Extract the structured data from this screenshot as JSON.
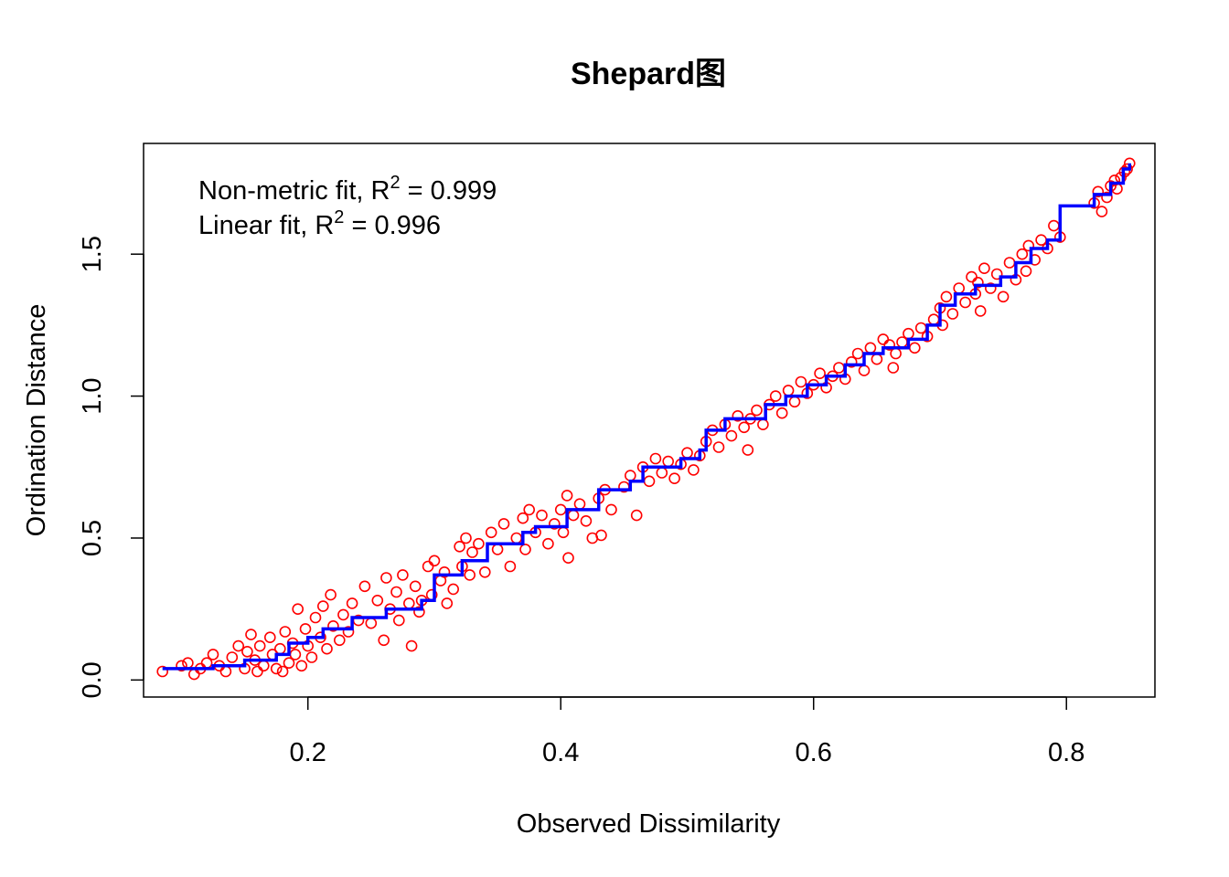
{
  "chart_data": {
    "type": "scatter",
    "title": "Shepard图",
    "xlabel": "Observed Dissimilarity",
    "ylabel": "Ordination Distance",
    "xlim": [
      0.07,
      0.87
    ],
    "ylim": [
      -0.06,
      1.89
    ],
    "xticks": [
      0.2,
      0.4,
      0.6,
      0.8
    ],
    "xtick_labels": [
      "0.2",
      "0.4",
      "0.6",
      "0.8"
    ],
    "yticks": [
      0.0,
      0.5,
      1.0,
      1.5
    ],
    "ytick_labels": [
      "0.0",
      "0.5",
      "1.0",
      "1.5"
    ],
    "grid": false,
    "legend": {
      "placement": "top-left",
      "lines": [
        {
          "prefix": "Non-metric fit, R",
          "sup": "2",
          "suffix": " = 0.999"
        },
        {
          "prefix": "Linear fit, R",
          "sup": "2",
          "suffix": " = 0.996"
        }
      ]
    },
    "series": [
      {
        "kind": "scatter",
        "marker": "open-circle",
        "color": "#FF0000",
        "points": [
          [
            0.085,
            0.03
          ],
          [
            0.1,
            0.05
          ],
          [
            0.105,
            0.06
          ],
          [
            0.11,
            0.02
          ],
          [
            0.115,
            0.04
          ],
          [
            0.12,
            0.06
          ],
          [
            0.125,
            0.09
          ],
          [
            0.13,
            0.05
          ],
          [
            0.135,
            0.03
          ],
          [
            0.14,
            0.08
          ],
          [
            0.145,
            0.12
          ],
          [
            0.15,
            0.04
          ],
          [
            0.152,
            0.1
          ],
          [
            0.155,
            0.16
          ],
          [
            0.158,
            0.07
          ],
          [
            0.16,
            0.03
          ],
          [
            0.162,
            0.12
          ],
          [
            0.165,
            0.05
          ],
          [
            0.17,
            0.15
          ],
          [
            0.172,
            0.09
          ],
          [
            0.175,
            0.04
          ],
          [
            0.178,
            0.11
          ],
          [
            0.18,
            0.03
          ],
          [
            0.182,
            0.17
          ],
          [
            0.185,
            0.06
          ],
          [
            0.188,
            0.13
          ],
          [
            0.19,
            0.09
          ],
          [
            0.192,
            0.25
          ],
          [
            0.195,
            0.05
          ],
          [
            0.198,
            0.18
          ],
          [
            0.2,
            0.12
          ],
          [
            0.203,
            0.08
          ],
          [
            0.206,
            0.22
          ],
          [
            0.21,
            0.15
          ],
          [
            0.212,
            0.26
          ],
          [
            0.215,
            0.11
          ],
          [
            0.218,
            0.3
          ],
          [
            0.22,
            0.19
          ],
          [
            0.225,
            0.14
          ],
          [
            0.228,
            0.23
          ],
          [
            0.232,
            0.17
          ],
          [
            0.235,
            0.27
          ],
          [
            0.24,
            0.21
          ],
          [
            0.245,
            0.33
          ],
          [
            0.25,
            0.2
          ],
          [
            0.255,
            0.28
          ],
          [
            0.26,
            0.14
          ],
          [
            0.262,
            0.36
          ],
          [
            0.265,
            0.25
          ],
          [
            0.27,
            0.31
          ],
          [
            0.272,
            0.21
          ],
          [
            0.275,
            0.37
          ],
          [
            0.28,
            0.27
          ],
          [
            0.282,
            0.12
          ],
          [
            0.285,
            0.33
          ],
          [
            0.288,
            0.24
          ],
          [
            0.29,
            0.28
          ],
          [
            0.295,
            0.4
          ],
          [
            0.298,
            0.3
          ],
          [
            0.3,
            0.42
          ],
          [
            0.305,
            0.35
          ],
          [
            0.308,
            0.38
          ],
          [
            0.31,
            0.27
          ],
          [
            0.315,
            0.32
          ],
          [
            0.32,
            0.47
          ],
          [
            0.322,
            0.4
          ],
          [
            0.325,
            0.5
          ],
          [
            0.328,
            0.37
          ],
          [
            0.33,
            0.45
          ],
          [
            0.335,
            0.48
          ],
          [
            0.34,
            0.38
          ],
          [
            0.345,
            0.52
          ],
          [
            0.35,
            0.46
          ],
          [
            0.355,
            0.55
          ],
          [
            0.36,
            0.4
          ],
          [
            0.365,
            0.5
          ],
          [
            0.37,
            0.57
          ],
          [
            0.372,
            0.46
          ],
          [
            0.375,
            0.6
          ],
          [
            0.38,
            0.52
          ],
          [
            0.385,
            0.58
          ],
          [
            0.39,
            0.48
          ],
          [
            0.395,
            0.55
          ],
          [
            0.4,
            0.6
          ],
          [
            0.402,
            0.52
          ],
          [
            0.405,
            0.65
          ],
          [
            0.406,
            0.43
          ],
          [
            0.41,
            0.58
          ],
          [
            0.415,
            0.62
          ],
          [
            0.42,
            0.56
          ],
          [
            0.425,
            0.5
          ],
          [
            0.43,
            0.64
          ],
          [
            0.432,
            0.51
          ],
          [
            0.435,
            0.67
          ],
          [
            0.44,
            0.6
          ],
          [
            0.45,
            0.68
          ],
          [
            0.455,
            0.72
          ],
          [
            0.46,
            0.58
          ],
          [
            0.465,
            0.75
          ],
          [
            0.47,
            0.7
          ],
          [
            0.475,
            0.78
          ],
          [
            0.48,
            0.73
          ],
          [
            0.485,
            0.77
          ],
          [
            0.49,
            0.71
          ],
          [
            0.495,
            0.76
          ],
          [
            0.5,
            0.8
          ],
          [
            0.505,
            0.74
          ],
          [
            0.51,
            0.79
          ],
          [
            0.515,
            0.84
          ],
          [
            0.52,
            0.88
          ],
          [
            0.525,
            0.82
          ],
          [
            0.53,
            0.9
          ],
          [
            0.535,
            0.86
          ],
          [
            0.54,
            0.93
          ],
          [
            0.545,
            0.89
          ],
          [
            0.548,
            0.81
          ],
          [
            0.55,
            0.92
          ],
          [
            0.555,
            0.95
          ],
          [
            0.56,
            0.9
          ],
          [
            0.565,
            0.97
          ],
          [
            0.57,
            1.0
          ],
          [
            0.575,
            0.94
          ],
          [
            0.58,
            1.02
          ],
          [
            0.585,
            0.98
          ],
          [
            0.59,
            1.05
          ],
          [
            0.595,
            1.01
          ],
          [
            0.6,
            1.04
          ],
          [
            0.605,
            1.08
          ],
          [
            0.61,
            1.03
          ],
          [
            0.615,
            1.07
          ],
          [
            0.62,
            1.1
          ],
          [
            0.625,
            1.06
          ],
          [
            0.63,
            1.12
          ],
          [
            0.635,
            1.15
          ],
          [
            0.64,
            1.09
          ],
          [
            0.645,
            1.17
          ],
          [
            0.65,
            1.13
          ],
          [
            0.655,
            1.2
          ],
          [
            0.66,
            1.18
          ],
          [
            0.663,
            1.1
          ],
          [
            0.665,
            1.15
          ],
          [
            0.67,
            1.19
          ],
          [
            0.675,
            1.22
          ],
          [
            0.68,
            1.17
          ],
          [
            0.685,
            1.24
          ],
          [
            0.69,
            1.21
          ],
          [
            0.695,
            1.27
          ],
          [
            0.7,
            1.31
          ],
          [
            0.702,
            1.25
          ],
          [
            0.705,
            1.35
          ],
          [
            0.71,
            1.29
          ],
          [
            0.715,
            1.38
          ],
          [
            0.72,
            1.33
          ],
          [
            0.725,
            1.42
          ],
          [
            0.728,
            1.36
          ],
          [
            0.73,
            1.4
          ],
          [
            0.732,
            1.3
          ],
          [
            0.735,
            1.45
          ],
          [
            0.74,
            1.38
          ],
          [
            0.745,
            1.43
          ],
          [
            0.75,
            1.35
          ],
          [
            0.755,
            1.47
          ],
          [
            0.76,
            1.41
          ],
          [
            0.765,
            1.5
          ],
          [
            0.768,
            1.44
          ],
          [
            0.77,
            1.53
          ],
          [
            0.775,
            1.48
          ],
          [
            0.78,
            1.55
          ],
          [
            0.785,
            1.52
          ],
          [
            0.79,
            1.6
          ],
          [
            0.795,
            1.56
          ],
          [
            0.822,
            1.68
          ],
          [
            0.825,
            1.72
          ],
          [
            0.828,
            1.65
          ],
          [
            0.832,
            1.7
          ],
          [
            0.835,
            1.74
          ],
          [
            0.838,
            1.76
          ],
          [
            0.84,
            1.73
          ],
          [
            0.843,
            1.77
          ],
          [
            0.846,
            1.79
          ],
          [
            0.848,
            1.8
          ],
          [
            0.85,
            1.82
          ]
        ]
      },
      {
        "kind": "step",
        "color": "#0000FF",
        "points": [
          [
            0.085,
            0.04
          ],
          [
            0.125,
            0.04
          ],
          [
            0.125,
            0.05
          ],
          [
            0.15,
            0.05
          ],
          [
            0.15,
            0.07
          ],
          [
            0.175,
            0.07
          ],
          [
            0.175,
            0.09
          ],
          [
            0.185,
            0.09
          ],
          [
            0.185,
            0.13
          ],
          [
            0.2,
            0.13
          ],
          [
            0.2,
            0.15
          ],
          [
            0.212,
            0.15
          ],
          [
            0.212,
            0.18
          ],
          [
            0.235,
            0.18
          ],
          [
            0.235,
            0.22
          ],
          [
            0.262,
            0.22
          ],
          [
            0.262,
            0.25
          ],
          [
            0.29,
            0.25
          ],
          [
            0.29,
            0.28
          ],
          [
            0.3,
            0.28
          ],
          [
            0.3,
            0.37
          ],
          [
            0.322,
            0.37
          ],
          [
            0.322,
            0.42
          ],
          [
            0.342,
            0.42
          ],
          [
            0.342,
            0.48
          ],
          [
            0.37,
            0.48
          ],
          [
            0.37,
            0.52
          ],
          [
            0.38,
            0.52
          ],
          [
            0.38,
            0.54
          ],
          [
            0.405,
            0.54
          ],
          [
            0.405,
            0.6
          ],
          [
            0.43,
            0.6
          ],
          [
            0.43,
            0.67
          ],
          [
            0.455,
            0.67
          ],
          [
            0.455,
            0.7
          ],
          [
            0.465,
            0.7
          ],
          [
            0.465,
            0.75
          ],
          [
            0.495,
            0.75
          ],
          [
            0.495,
            0.78
          ],
          [
            0.51,
            0.78
          ],
          [
            0.51,
            0.81
          ],
          [
            0.515,
            0.81
          ],
          [
            0.515,
            0.88
          ],
          [
            0.53,
            0.88
          ],
          [
            0.53,
            0.92
          ],
          [
            0.562,
            0.92
          ],
          [
            0.562,
            0.97
          ],
          [
            0.578,
            0.97
          ],
          [
            0.578,
            1.0
          ],
          [
            0.595,
            1.0
          ],
          [
            0.595,
            1.04
          ],
          [
            0.61,
            1.04
          ],
          [
            0.61,
            1.07
          ],
          [
            0.625,
            1.07
          ],
          [
            0.625,
            1.11
          ],
          [
            0.64,
            1.11
          ],
          [
            0.64,
            1.15
          ],
          [
            0.655,
            1.15
          ],
          [
            0.655,
            1.17
          ],
          [
            0.675,
            1.17
          ],
          [
            0.675,
            1.2
          ],
          [
            0.69,
            1.2
          ],
          [
            0.69,
            1.25
          ],
          [
            0.7,
            1.25
          ],
          [
            0.7,
            1.32
          ],
          [
            0.712,
            1.32
          ],
          [
            0.712,
            1.36
          ],
          [
            0.728,
            1.36
          ],
          [
            0.728,
            1.39
          ],
          [
            0.748,
            1.39
          ],
          [
            0.748,
            1.42
          ],
          [
            0.76,
            1.42
          ],
          [
            0.76,
            1.47
          ],
          [
            0.772,
            1.47
          ],
          [
            0.772,
            1.52
          ],
          [
            0.785,
            1.52
          ],
          [
            0.785,
            1.55
          ],
          [
            0.795,
            1.55
          ],
          [
            0.795,
            1.67
          ],
          [
            0.822,
            1.67
          ],
          [
            0.822,
            1.71
          ],
          [
            0.835,
            1.71
          ],
          [
            0.835,
            1.75
          ],
          [
            0.845,
            1.75
          ],
          [
            0.845,
            1.8
          ],
          [
            0.85,
            1.8
          ],
          [
            0.85,
            1.82
          ]
        ]
      }
    ]
  }
}
